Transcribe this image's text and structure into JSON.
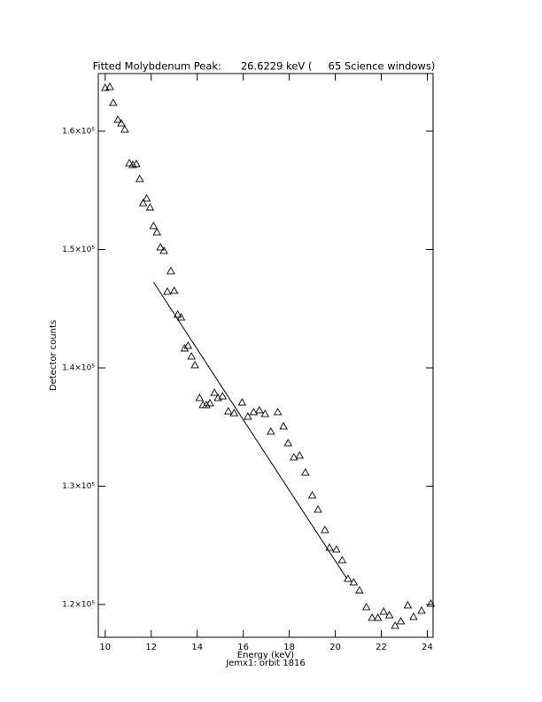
{
  "chart_data": {
    "type": "scatter",
    "title": "Fitted Molybdenum Peak:      26.6229 keV (     65 Science windows)",
    "x_label": "Energy (keV)",
    "subtitle": "Jemx1: orbit 1816",
    "y_label": "Detector counts",
    "xlim": [
      9.7,
      24.25
    ],
    "ylim": [
      117230,
      164870
    ],
    "xticks": [
      10,
      12,
      14,
      16,
      18,
      20,
      22,
      24
    ],
    "yticks": [
      {
        "value": 120000,
        "label": "1.2×10⁵"
      },
      {
        "value": 130000,
        "label": "1.3×10⁵"
      },
      {
        "value": 140000,
        "label": "1.4×10⁵"
      },
      {
        "value": 150000,
        "label": "1.5×10⁵"
      },
      {
        "value": 160000,
        "label": "1.6×10⁵"
      }
    ],
    "series": [
      {
        "style": "markers",
        "marker": "triangle",
        "color": "#000000",
        "x": [
          10.0,
          10.2,
          10.35,
          10.55,
          10.7,
          10.85,
          11.05,
          11.2,
          11.35,
          11.5,
          11.65,
          11.8,
          11.95,
          12.1,
          12.25,
          12.4,
          12.55,
          12.7,
          12.85,
          13.0,
          13.15,
          13.3,
          13.45,
          13.6,
          13.75,
          13.9,
          14.1,
          14.25,
          14.4,
          14.55,
          14.75,
          14.9,
          15.1,
          15.35,
          15.6,
          15.95,
          16.2,
          16.45,
          16.7,
          16.95,
          17.2,
          17.5,
          17.75,
          17.95,
          18.2,
          18.45,
          18.7,
          19.0,
          19.25,
          19.55,
          19.75,
          20.05,
          20.3,
          20.55,
          20.8,
          21.05,
          21.35,
          21.6,
          21.85,
          22.1,
          22.35,
          22.6,
          22.85,
          23.15,
          23.4,
          23.75,
          24.15
        ],
        "values": [
          163670,
          163745,
          162400,
          160970,
          160670,
          160150,
          157300,
          157150,
          157230,
          155960,
          153930,
          154310,
          153560,
          151990,
          151460,
          150190,
          149890,
          146440,
          148170,
          146520,
          144500,
          144270,
          141650,
          141870,
          140970,
          140230,
          137460,
          136860,
          136860,
          137010,
          137900,
          137460,
          137600,
          136330,
          136180,
          137080,
          135880,
          136260,
          136410,
          136110,
          134610,
          136260,
          135060,
          133640,
          132440,
          132590,
          131160,
          129220,
          128020,
          126300,
          124800,
          124650,
          123750,
          122170,
          121880,
          121200,
          119780,
          118880,
          118880,
          119400,
          119100,
          118210,
          118580,
          119930,
          118960,
          119480,
          120070
        ]
      },
      {
        "style": "line",
        "color": "#000000",
        "x": [
          12.1,
          20.5
        ],
        "values": [
          147240,
          122200
        ]
      }
    ]
  }
}
